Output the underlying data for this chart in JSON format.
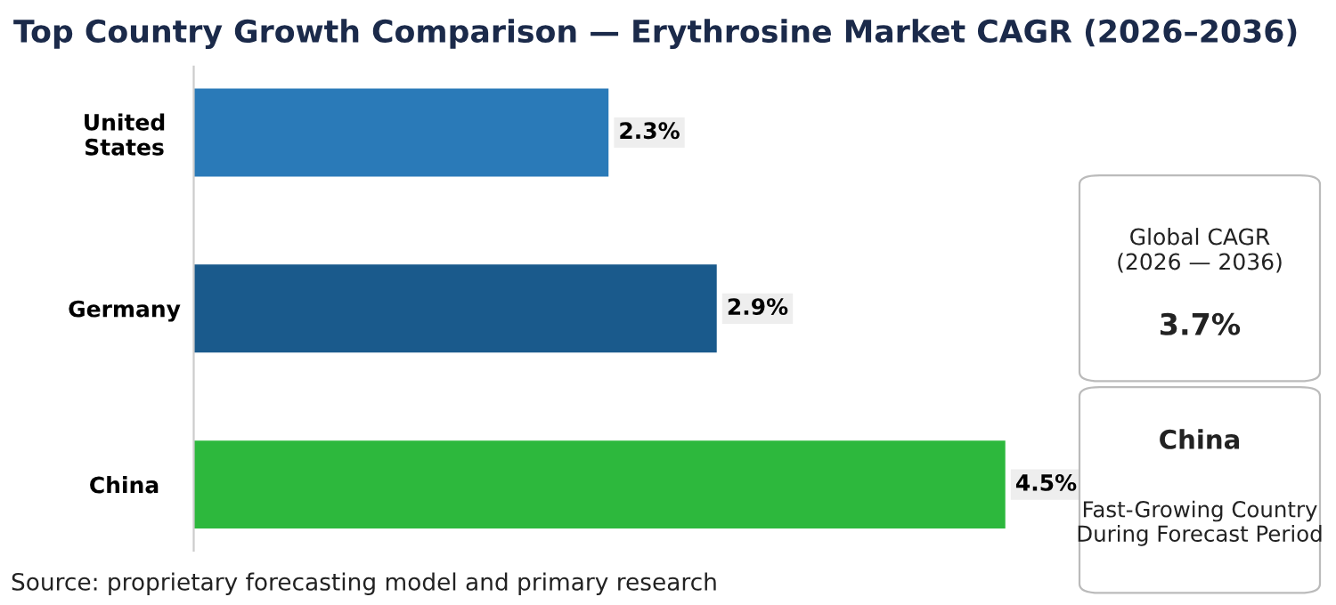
{
  "chart_data": {
    "type": "bar",
    "orientation": "horizontal",
    "title": "Top Country Growth Comparison — Erythrosine Market CAGR (2026–2036)",
    "categories": [
      "United\nStates",
      "Germany",
      "China"
    ],
    "values": [
      2.3,
      2.9,
      4.5
    ],
    "colors": [
      "#2a7ab8",
      "#1a5a8c",
      "#2db83d"
    ],
    "value_labels": [
      "2.3%",
      "2.9%",
      "4.5%"
    ],
    "tick_labels": "y",
    "grid": false,
    "legend": false,
    "annotations": [
      "Source: proprietary forecasting model and primary research",
      "Global CAGR\n(2026 — 2036)",
      "3.7%",
      "China",
      "Fast-Growing Country\nDuring Forecast Period"
    ]
  }
}
